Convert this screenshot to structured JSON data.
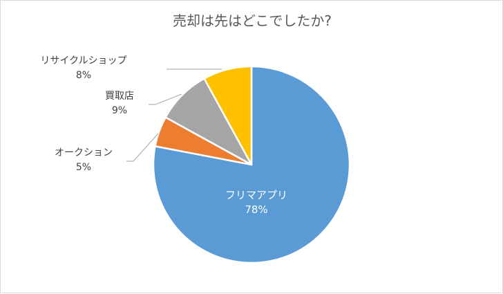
{
  "chart_data": {
    "type": "pie",
    "title": "売却は先はどこでしたか?",
    "start_angle_deg": 0,
    "direction": "clockwise",
    "slices": [
      {
        "label": "フリマアプリ",
        "value": 78,
        "value_label": "78%",
        "color": "#5B9BD5"
      },
      {
        "label": "オークション",
        "value": 5,
        "value_label": "5%",
        "color": "#ED7D31"
      },
      {
        "label": "買取店",
        "value": 9,
        "value_label": "9%",
        "color": "#A5A5A5"
      },
      {
        "label": "リサイクルショップ",
        "value": 8,
        "value_label": "8%",
        "color": "#FFC000"
      }
    ],
    "legend": "none"
  }
}
